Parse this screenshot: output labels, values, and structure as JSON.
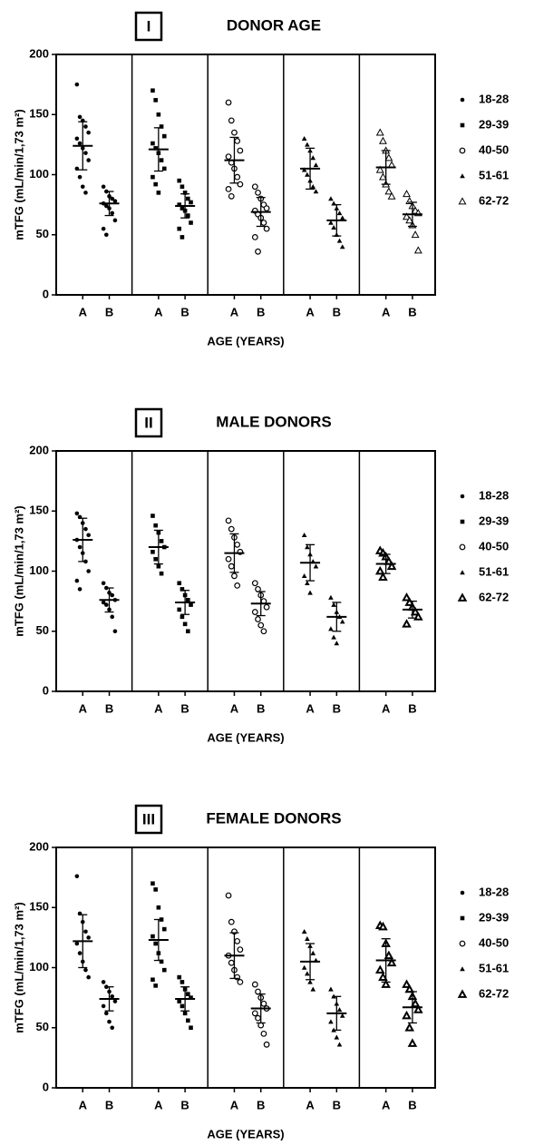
{
  "chart_data": [
    {
      "type": "dot",
      "label": "I",
      "title": "DONOR AGE",
      "ylabel": "mTFG (mL/min/1,73 m²)",
      "xlabel": "AGE (YEARS)",
      "ylim": [
        0,
        200
      ],
      "yticks": [
        0,
        50,
        100,
        150,
        200
      ],
      "groups": [
        {
          "name": "18-28",
          "marker": "dot",
          "columns": [
            {
              "category": "A",
              "mean": 124,
              "sd": 20,
              "points": [
                175,
                148,
                145,
                140,
                135,
                130,
                126,
                122,
                118,
                112,
                105,
                98,
                90,
                85
              ]
            },
            {
              "category": "B",
              "mean": 76,
              "sd": 10,
              "points": [
                90,
                86,
                82,
                80,
                78,
                76,
                74,
                72,
                68,
                62,
                55,
                50
              ]
            }
          ]
        },
        {
          "name": "29-39",
          "marker": "square",
          "columns": [
            {
              "category": "A",
              "mean": 121,
              "sd": 18,
              "points": [
                170,
                162,
                150,
                140,
                132,
                126,
                122,
                118,
                112,
                105,
                98,
                92,
                85
              ]
            },
            {
              "category": "B",
              "mean": 74,
              "sd": 10,
              "points": [
                95,
                90,
                85,
                80,
                77,
                75,
                72,
                70,
                66,
                60,
                55,
                48
              ]
            }
          ]
        },
        {
          "name": "40-50",
          "marker": "circle",
          "columns": [
            {
              "category": "A",
              "mean": 112,
              "sd": 19,
              "points": [
                160,
                145,
                135,
                128,
                120,
                115,
                110,
                105,
                98,
                92,
                88,
                82
              ]
            },
            {
              "category": "B",
              "mean": 69,
              "sd": 12,
              "points": [
                90,
                85,
                80,
                75,
                72,
                70,
                67,
                64,
                60,
                55,
                48,
                36
              ]
            }
          ]
        },
        {
          "name": "51-61",
          "marker": "triangle",
          "columns": [
            {
              "category": "A",
              "mean": 105,
              "sd": 17,
              "points": [
                130,
                125,
                120,
                114,
                108,
                104,
                100,
                95,
                90,
                86
              ]
            },
            {
              "category": "B",
              "mean": 62,
              "sd": 13,
              "points": [
                80,
                76,
                72,
                68,
                64,
                60,
                56,
                50,
                45,
                40
              ]
            }
          ]
        },
        {
          "name": "62-72",
          "marker": "open-triangle",
          "columns": [
            {
              "category": "A",
              "mean": 106,
              "sd": 14,
              "points": [
                135,
                128,
                120,
                114,
                108,
                104,
                98,
                92,
                86,
                82
              ]
            },
            {
              "category": "B",
              "mean": 67,
              "sd": 10,
              "points": [
                84,
                78,
                74,
                70,
                68,
                65,
                62,
                58,
                50,
                37
              ]
            }
          ]
        }
      ]
    },
    {
      "type": "dot",
      "label": "II",
      "title": "MALE DONORS",
      "ylabel": "mTFG (mL/min/1,73 m²)",
      "xlabel": "AGE (YEARS)",
      "ylim": [
        0,
        200
      ],
      "yticks": [
        0,
        50,
        100,
        150,
        200
      ],
      "groups": [
        {
          "name": "18-28",
          "marker": "dot",
          "columns": [
            {
              "category": "A",
              "mean": 126,
              "sd": 18,
              "points": [
                148,
                145,
                140,
                135,
                130,
                126,
                120,
                115,
                108,
                100,
                92,
                85
              ]
            },
            {
              "category": "B",
              "mean": 76,
              "sd": 10,
              "points": [
                90,
                86,
                82,
                80,
                76,
                74,
                72,
                68,
                62,
                50
              ]
            }
          ]
        },
        {
          "name": "29-39",
          "marker": "square",
          "columns": [
            {
              "category": "A",
              "mean": 120,
              "sd": 14,
              "points": [
                146,
                138,
                132,
                125,
                120,
                116,
                110,
                104,
                98
              ]
            },
            {
              "category": "B",
              "mean": 74,
              "sd": 10,
              "points": [
                90,
                85,
                80,
                76,
                72,
                68,
                62,
                56,
                50
              ]
            }
          ]
        },
        {
          "name": "40-50",
          "marker": "circle",
          "columns": [
            {
              "category": "A",
              "mean": 115,
              "sd": 16,
              "points": [
                142,
                135,
                128,
                122,
                116,
                110,
                104,
                96,
                88
              ]
            },
            {
              "category": "B",
              "mean": 73,
              "sd": 10,
              "points": [
                90,
                85,
                80,
                75,
                70,
                66,
                60,
                55,
                50
              ]
            }
          ]
        },
        {
          "name": "51-61",
          "marker": "triangle",
          "columns": [
            {
              "category": "A",
              "mean": 107,
              "sd": 15,
              "points": [
                130,
                120,
                114,
                108,
                104,
                96,
                90,
                82
              ]
            },
            {
              "category": "B",
              "mean": 62,
              "sd": 12,
              "points": [
                78,
                72,
                66,
                62,
                58,
                52,
                45,
                40
              ]
            }
          ]
        },
        {
          "name": "62-72",
          "marker": "bold-triangle",
          "columns": [
            {
              "category": "A",
              "mean": 106,
              "sd": 8,
              "points": [
                117,
                115,
                112,
                108,
                104,
                100,
                95
              ]
            },
            {
              "category": "B",
              "mean": 68,
              "sd": 7,
              "points": [
                78,
                74,
                70,
                66,
                62,
                56
              ]
            }
          ]
        }
      ]
    },
    {
      "type": "dot",
      "label": "III",
      "title": "FEMALE DONORS",
      "ylabel": "mTFG (mL/min/1,73 m²)",
      "xlabel": "AGE (YEARS)",
      "ylim": [
        0,
        200
      ],
      "yticks": [
        0,
        50,
        100,
        150,
        200
      ],
      "groups": [
        {
          "name": "18-28",
          "marker": "dot",
          "columns": [
            {
              "category": "A",
              "mean": 122,
              "sd": 22,
              "points": [
                176,
                145,
                138,
                130,
                125,
                120,
                112,
                105,
                98,
                92
              ]
            },
            {
              "category": "B",
              "mean": 74,
              "sd": 10,
              "points": [
                88,
                84,
                80,
                76,
                72,
                68,
                62,
                55,
                50
              ]
            }
          ]
        },
        {
          "name": "29-39",
          "marker": "square",
          "columns": [
            {
              "category": "A",
              "mean": 123,
              "sd": 17,
              "points": [
                170,
                165,
                150,
                140,
                132,
                126,
                120,
                112,
                105,
                98,
                90,
                85
              ]
            },
            {
              "category": "B",
              "mean": 74,
              "sd": 10,
              "points": [
                92,
                88,
                82,
                78,
                75,
                72,
                68,
                62,
                56,
                50
              ]
            }
          ]
        },
        {
          "name": "40-50",
          "marker": "circle",
          "columns": [
            {
              "category": "A",
              "mean": 110,
              "sd": 19,
              "points": [
                160,
                138,
                130,
                122,
                115,
                110,
                104,
                98,
                92,
                88
              ]
            },
            {
              "category": "B",
              "mean": 66,
              "sd": 12,
              "points": [
                86,
                80,
                75,
                70,
                66,
                62,
                58,
                52,
                45,
                36
              ]
            }
          ]
        },
        {
          "name": "51-61",
          "marker": "triangle",
          "columns": [
            {
              "category": "A",
              "mean": 105,
              "sd": 15,
              "points": [
                130,
                124,
                118,
                112,
                106,
                100,
                95,
                88,
                82
              ]
            },
            {
              "category": "B",
              "mean": 62,
              "sd": 14,
              "points": [
                82,
                76,
                70,
                65,
                60,
                55,
                48,
                42,
                36
              ]
            }
          ]
        },
        {
          "name": "62-72",
          "marker": "bold-triangle",
          "columns": [
            {
              "category": "A",
              "mean": 106,
              "sd": 18,
              "points": [
                135,
                134,
                120,
                110,
                104,
                98,
                92,
                86
              ]
            },
            {
              "category": "B",
              "mean": 67,
              "sd": 13,
              "points": [
                86,
                82,
                76,
                70,
                65,
                60,
                50,
                37
              ]
            }
          ]
        }
      ]
    }
  ]
}
